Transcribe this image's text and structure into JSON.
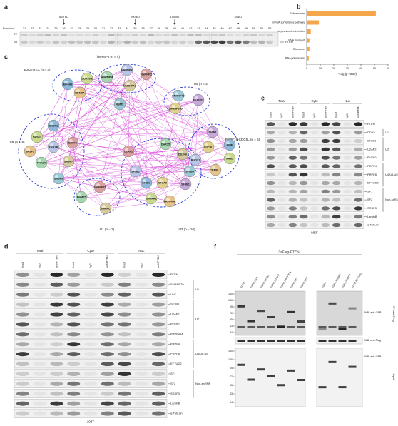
{
  "panel_labels": [
    "a",
    "b",
    "c",
    "d",
    "e",
    "f"
  ],
  "panel_a": {
    "fractions_label": "Fractions",
    "fractions": [
      "21",
      "22",
      "23",
      "24",
      "25",
      "26",
      "27",
      "28",
      "29",
      "30",
      "31",
      "32",
      "33",
      "34",
      "35",
      "36",
      "37",
      "38",
      "39",
      "40",
      "41",
      "42",
      "43",
      "44",
      "45",
      "46",
      "47",
      "48",
      "49",
      "50",
      "51",
      "52"
    ],
    "markers": [
      "669 kD",
      "200 kD",
      "150 kD",
      "44 kD"
    ],
    "mw": [
      "72",
      "55"
    ],
    "band": "PTEN"
  },
  "chart_data": {
    "type": "bar",
    "orientation": "horizontal",
    "categories": [
      "Spliceosome",
      "mRNA surveillance pathway",
      "Herpes simplex infection",
      "RNA transport",
      "Ribosome",
      "RNA polymerase"
    ],
    "values": [
      51,
      9,
      3,
      2,
      2,
      1.5
    ],
    "color": "#f5a54a",
    "xlim": [
      0,
      60
    ],
    "xticks": [
      0,
      10,
      20,
      30,
      40,
      50,
      60
    ],
    "xlabel": "-Log (p value)"
  },
  "panel_c": {
    "groups": [
      "EJC/TREX (n = 3)",
      "hnRNPs (n = 4)",
      "U5 (n = 3)",
      "SR (n = 8)",
      "PRPF19-CDC5L (n = 6)",
      "U2 (n = 10)",
      "U1 (n = 3)"
    ],
    "nodes": [
      "EIF4A3",
      "DDX39B",
      "RBM8A",
      "HNRNPK",
      "HNRNPC",
      "HNRNPM",
      "HNRNPA3",
      "SNRNP40",
      "EFTUD2",
      "SNRNP200",
      "SRSF1",
      "SRSF3",
      "SRSF2",
      "TRA2B",
      "SRSF6",
      "TRA2A",
      "SRSF7",
      "SRSF9",
      "SNW1",
      "CDC5L",
      "PPIE",
      "XAB2",
      "CRNKL1",
      "BUD31",
      "U2AF2",
      "DHX15",
      "DDX46",
      "SF3B4",
      "SF3B1",
      "SF3A3",
      "SF3B3",
      "SNRPA1",
      "PRPF40A",
      "SF3B2",
      "SNRNP70",
      "RBM25",
      "SNRPC",
      "RBMX"
    ]
  },
  "panel_d": {
    "columns": [
      "Total",
      "Cyto",
      "Nuc"
    ],
    "lanes": [
      "Input",
      "IgG",
      "anti-PTEN",
      "Input",
      "IgG",
      "anti-PTEN",
      "Input",
      "IgG",
      "anti-PTEN"
    ],
    "rows": [
      "PTEN",
      "SNRNP70",
      "U1C",
      "SF3B1",
      "U2AF2",
      "PUF60",
      "PRPF40A",
      "PRPF4",
      "PRPF8",
      "EFTUD2",
      "SF1",
      "SF2",
      "SRSF3",
      "LaminB",
      "α-Tubulin"
    ],
    "groups": [
      "U1",
      "U2",
      "U4/U6.U5",
      "Non-snRNP"
    ],
    "cell_line": "293T"
  },
  "panel_e": {
    "columns": [
      "Total",
      "Cyto",
      "Nuc"
    ],
    "lanes": [
      "Input",
      "IgG",
      "anti-PTEN",
      "Input",
      "IgG",
      "anti-PTEN",
      "Input",
      "IgG",
      "anti-PTEN"
    ],
    "rows": [
      "PTEN",
      "DDX5",
      "SF3B1",
      "U2AF2",
      "PUF60",
      "PRPF4",
      "PRPF8",
      "EFTUD2",
      "SF1",
      "SF2",
      "SRSF3",
      "LaminB",
      "α-Tubulin"
    ],
    "groups": [
      "U1",
      "U2",
      "U4/U6.U5",
      "Non-snRNP"
    ],
    "cell_line": "MEF"
  },
  "panel_f": {
    "header": "3×Flag-PTEN",
    "lanes": [
      "EGFP",
      "EGFP-U1C",
      "EGFP-SF3B1",
      "EGFP-U2AF2",
      "EGFP-PRPF40A",
      "EGFP-SF1",
      "EGFP-SF2",
      "EGFP",
      "EGFP-SRSF3",
      "EGFP-PRPF4",
      "EGFP-EFTUD2"
    ],
    "mw_upper": [
      "180",
      "130",
      "95",
      "72",
      "55",
      "43",
      "34"
    ],
    "mw_lower": [
      "180",
      "130",
      "95",
      "72",
      "55",
      "43",
      "34"
    ],
    "wb": [
      "WB: anti-GFP",
      "WB: anti-Flag",
      "WB: anti-GFP"
    ],
    "sections": [
      "IP: anti-Flag",
      "Input"
    ]
  }
}
